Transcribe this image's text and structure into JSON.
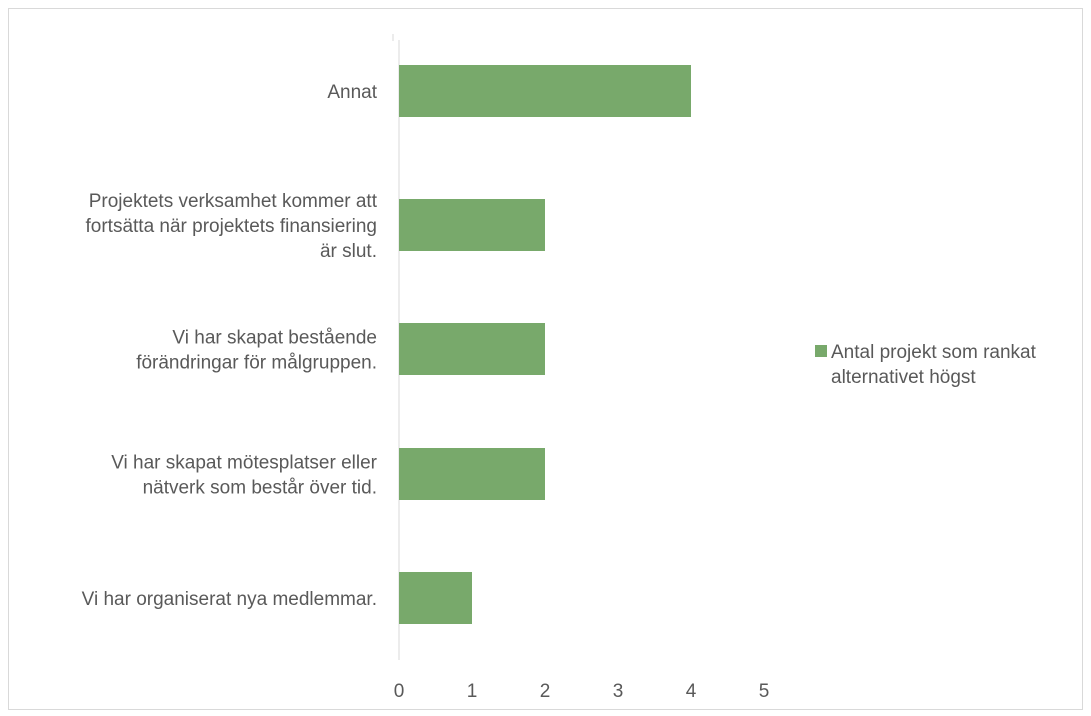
{
  "chart_data": {
    "type": "bar",
    "orientation": "horizontal",
    "categories": [
      "Annat",
      "Projektets verksamhet kommer att fortsätta när projektets finansiering är slut.",
      "Vi har skapat bestående förändringar för målgruppen.",
      "Vi har skapat mötesplatser eller nätverk som består över tid.",
      "Vi har organiserat nya medlemmar."
    ],
    "category_lines": [
      [
        "Annat"
      ],
      [
        "Projektets verksamhet kommer att",
        "fortsätta när projektets finansiering",
        "är slut."
      ],
      [
        "Vi har skapat bestående",
        "förändringar för målgruppen."
      ],
      [
        "Vi har skapat mötesplatser eller",
        "nätverk som består över tid."
      ],
      [
        "Vi har organiserat nya medlemmar."
      ]
    ],
    "series": [
      {
        "name": "Antal projekt som rankat alternativet högst",
        "name_lines": [
          "Antal projekt som rankat",
          "alternativet högst"
        ],
        "values": [
          4,
          2,
          2,
          2,
          1
        ],
        "color": "#78a96b"
      }
    ],
    "xlim": [
      0,
      5
    ],
    "xticks": [
      "0",
      "1",
      "2",
      "3",
      "4",
      "5"
    ],
    "grid": false,
    "legend_position": "right",
    "title": "",
    "xlabel": "",
    "ylabel": ""
  }
}
